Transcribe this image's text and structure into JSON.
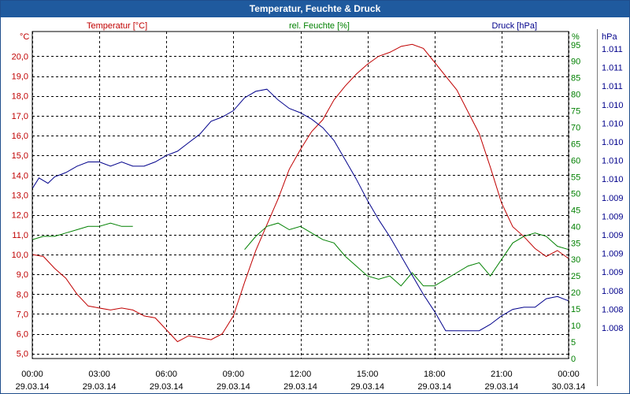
{
  "window": {
    "title": "Temperatur, Feuchte & Druck"
  },
  "chart_data": {
    "type": "line",
    "title": "Temperatur, Feuchte & Druck",
    "x_ticks": [
      {
        "hour": 0,
        "time": "00:00",
        "date": "29.03.14"
      },
      {
        "hour": 3,
        "time": "03:00",
        "date": "29.03.14"
      },
      {
        "hour": 6,
        "time": "06:00",
        "date": "29.03.14"
      },
      {
        "hour": 9,
        "time": "09:00",
        "date": "29.03.14"
      },
      {
        "hour": 12,
        "time": "12:00",
        "date": "29.03.14"
      },
      {
        "hour": 15,
        "time": "15:00",
        "date": "29.03.14"
      },
      {
        "hour": 18,
        "time": "18:00",
        "date": "29.03.14"
      },
      {
        "hour": 21,
        "time": "21:00",
        "date": "29.03.14"
      },
      {
        "hour": 24,
        "time": "00:00",
        "date": "30.03.14"
      }
    ],
    "xlim": [
      0,
      24
    ],
    "axes": {
      "temperature": {
        "unit": "°C",
        "label": "Temperatur [°C]",
        "color": "#c00000",
        "ylim": [
          4.75,
          21.25
        ],
        "ticks": [
          20,
          19,
          18,
          17,
          16,
          15,
          14,
          13,
          12,
          11,
          10,
          9,
          8,
          7,
          6,
          5
        ],
        "tick_labels": [
          "20,0",
          "19,0",
          "18,0",
          "17,0",
          "16,0",
          "15,0",
          "14,0",
          "13,0",
          "12,0",
          "11,0",
          "10,0",
          "9,0",
          "8,0",
          "7,0",
          "6,0",
          "5,0"
        ]
      },
      "humidity": {
        "unit": "%",
        "label": "rel. Feuchte [%]",
        "color": "#008000",
        "ylim": [
          0,
          99
        ],
        "ticks": [
          95,
          90,
          85,
          80,
          75,
          70,
          65,
          60,
          55,
          50,
          45,
          40,
          35,
          30,
          25,
          20,
          15,
          10,
          5,
          0
        ],
        "tick_labels": [
          "95",
          "90",
          "85",
          "80",
          "75",
          "70",
          "65",
          "60",
          "55",
          "50",
          "45",
          "40",
          "35",
          "30",
          "25",
          "20",
          "15",
          "10",
          "5",
          "0"
        ]
      },
      "pressure": {
        "unit": "hPa",
        "label": "Druck [hPa]",
        "color": "#00008b",
        "ticks": [
          0,
          1,
          2,
          3,
          4,
          5,
          6,
          7,
          8,
          9,
          10,
          11,
          12,
          13,
          14,
          15
        ],
        "tick_labels": [
          "1.011",
          "1.011",
          "1.011",
          "1.010",
          "1.010",
          "1.010",
          "1.010",
          "1.010",
          "1.009",
          "1.009",
          "1.009",
          "1.009",
          "1.009",
          "1.008",
          "1.008",
          "1.008"
        ]
      }
    },
    "series": [
      {
        "name": "Temperatur",
        "axis": "temperature",
        "color": "#c00000",
        "x": [
          0,
          0.5,
          1,
          1.5,
          2,
          2.5,
          3,
          3.5,
          4,
          4.5,
          5,
          5.5,
          6,
          6.5,
          7,
          7.5,
          8,
          8.5,
          9,
          9.5,
          10,
          10.5,
          11,
          11.5,
          12,
          12.5,
          13,
          13.5,
          14,
          14.5,
          15,
          15.5,
          16,
          16.5,
          17,
          17.5,
          18,
          18.5,
          19,
          19.5,
          20,
          20.5,
          21,
          21.5,
          22,
          22.5,
          23,
          23.5,
          24
        ],
        "y": [
          10.0,
          9.9,
          9.3,
          8.8,
          8.0,
          7.4,
          7.3,
          7.2,
          7.3,
          7.2,
          6.9,
          6.8,
          6.2,
          5.6,
          5.9,
          5.8,
          5.7,
          6.0,
          6.9,
          8.6,
          10.2,
          11.5,
          12.8,
          14.3,
          15.3,
          16.2,
          16.8,
          17.8,
          18.5,
          19.1,
          19.6,
          20.0,
          20.2,
          20.5,
          20.6,
          20.4,
          19.7,
          19.0,
          18.3,
          17.2,
          16.1,
          14.4,
          12.6,
          11.4,
          10.9,
          10.3,
          9.9,
          10.2,
          9.8
        ]
      },
      {
        "name": "rel. Feuchte",
        "axis": "humidity",
        "color": "#008000",
        "x": [
          0,
          0.5,
          1,
          1.5,
          2,
          2.5,
          3,
          3.5,
          4,
          4.5,
          9.5,
          10,
          10.5,
          11,
          11.5,
          12,
          12.5,
          13,
          13.5,
          14,
          14.5,
          15,
          15.5,
          16,
          16.5,
          17,
          17.5,
          18,
          18.5,
          19,
          19.5,
          20,
          20.5,
          21,
          21.5,
          22,
          22.5,
          23,
          23.5,
          24
        ],
        "y": [
          36,
          37,
          37,
          38,
          39,
          40,
          40,
          41,
          40,
          40,
          33,
          37,
          40,
          41,
          39,
          40,
          38,
          36,
          35,
          31,
          28,
          25,
          24,
          25,
          22,
          26,
          22,
          22,
          24,
          26,
          28,
          29,
          25,
          30,
          35,
          37,
          38,
          37,
          34,
          33
        ]
      },
      {
        "name": "Druck",
        "axis": "pressure",
        "color": "#00008b",
        "x": [
          0,
          0.3,
          0.7,
          1,
          1.5,
          2,
          2.5,
          3,
          3.5,
          4,
          4.5,
          5,
          5.5,
          6,
          6.5,
          7,
          7.5,
          8,
          8.5,
          9,
          9.5,
          10,
          10.5,
          11,
          11.5,
          12,
          12.5,
          13,
          13.5,
          14,
          14.5,
          15,
          15.5,
          16,
          16.5,
          17,
          17.5,
          18,
          18.5,
          19,
          19.5,
          20,
          20.5,
          21,
          21.5,
          22,
          22.5,
          23,
          23.5,
          24
        ],
        "y": [
          8.25,
          8.75,
          8.5,
          8.8,
          9.0,
          9.3,
          9.5,
          9.5,
          9.3,
          9.5,
          9.3,
          9.3,
          9.5,
          9.8,
          10.0,
          10.4,
          10.8,
          11.4,
          11.6,
          11.9,
          12.5,
          12.8,
          12.9,
          12.4,
          12.0,
          11.8,
          11.5,
          11.1,
          10.5,
          9.6,
          8.7,
          7.7,
          6.8,
          6.0,
          5.1,
          4.2,
          3.3,
          2.5,
          1.6,
          1.6,
          1.6,
          1.6,
          1.9,
          2.3,
          2.6,
          2.7,
          2.7,
          3.1,
          3.2,
          3.0
        ],
        "ylim": [
          0.3,
          15.6
        ]
      }
    ]
  }
}
